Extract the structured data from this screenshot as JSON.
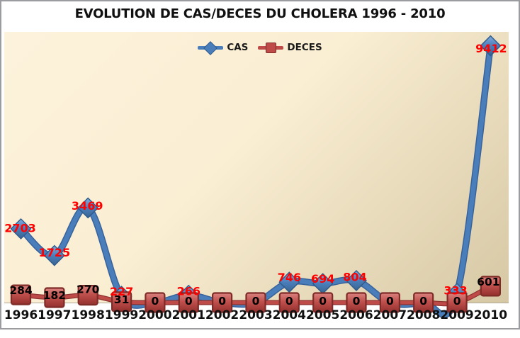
{
  "chart_data": {
    "type": "line",
    "title": "EVOLUTION DE CAS/DECES DU CHOLERA 1996 - 2010",
    "categories": [
      "1996",
      "1997",
      "1998",
      "1999",
      "2000",
      "2001",
      "2002",
      "2003",
      "2004",
      "2005",
      "2006",
      "2007",
      "2008",
      "2009",
      "2010"
    ],
    "series": [
      {
        "name": "CAS",
        "marker": "diamond",
        "color": "#4A7EBB",
        "color_dark": "#38629B",
        "label_color": "#FF0000",
        "values": [
          2703,
          1725,
          3469,
          227,
          0,
          266,
          0,
          0,
          746,
          694,
          804,
          0,
          0,
          333,
          9412
        ],
        "labels": [
          "2703",
          "1725",
          "3469",
          "227",
          "",
          "266",
          "",
          "",
          "746",
          "694",
          "804",
          "",
          "",
          "333",
          "9412"
        ],
        "label_dx": [
          -1,
          0,
          -1,
          0,
          0,
          0,
          0,
          0,
          0,
          0,
          -2,
          0,
          0,
          -2,
          1
        ],
        "label_dy": [
          -1,
          -4,
          -3,
          -7,
          0,
          -6,
          0,
          0,
          -7,
          -7,
          -5,
          0,
          0,
          -4,
          4
        ]
      },
      {
        "name": "DECES",
        "marker": "square",
        "color": "#BE4B48",
        "color_dark": "#8E3230",
        "label_color": "#000000",
        "values": [
          284,
          182,
          270,
          31,
          0,
          0,
          0,
          0,
          0,
          0,
          0,
          0,
          0,
          0,
          601
        ],
        "labels": [
          "284",
          "182",
          "270",
          "31",
          "0",
          "0",
          "0",
          "0",
          "0",
          "0",
          "0",
          "0",
          "0",
          "0",
          "601"
        ],
        "label_dx": [
          0,
          0,
          0,
          0,
          0,
          0,
          0,
          0,
          0,
          0,
          0,
          0,
          0,
          0,
          -3
        ],
        "label_dy": [
          -6,
          -3,
          -8,
          -3,
          -2,
          -2,
          -2,
          -2,
          -2,
          -2,
          -2,
          -2,
          -2,
          -2,
          -6
        ]
      }
    ],
    "ylim": [
      0,
      10000
    ],
    "grid": false,
    "legend_position": "top-center",
    "line_style": "smooth",
    "plot_background": {
      "light": "#FDF3DC",
      "dark": "#D6C8A4"
    },
    "frame_border_color": "#9A9C9F"
  }
}
